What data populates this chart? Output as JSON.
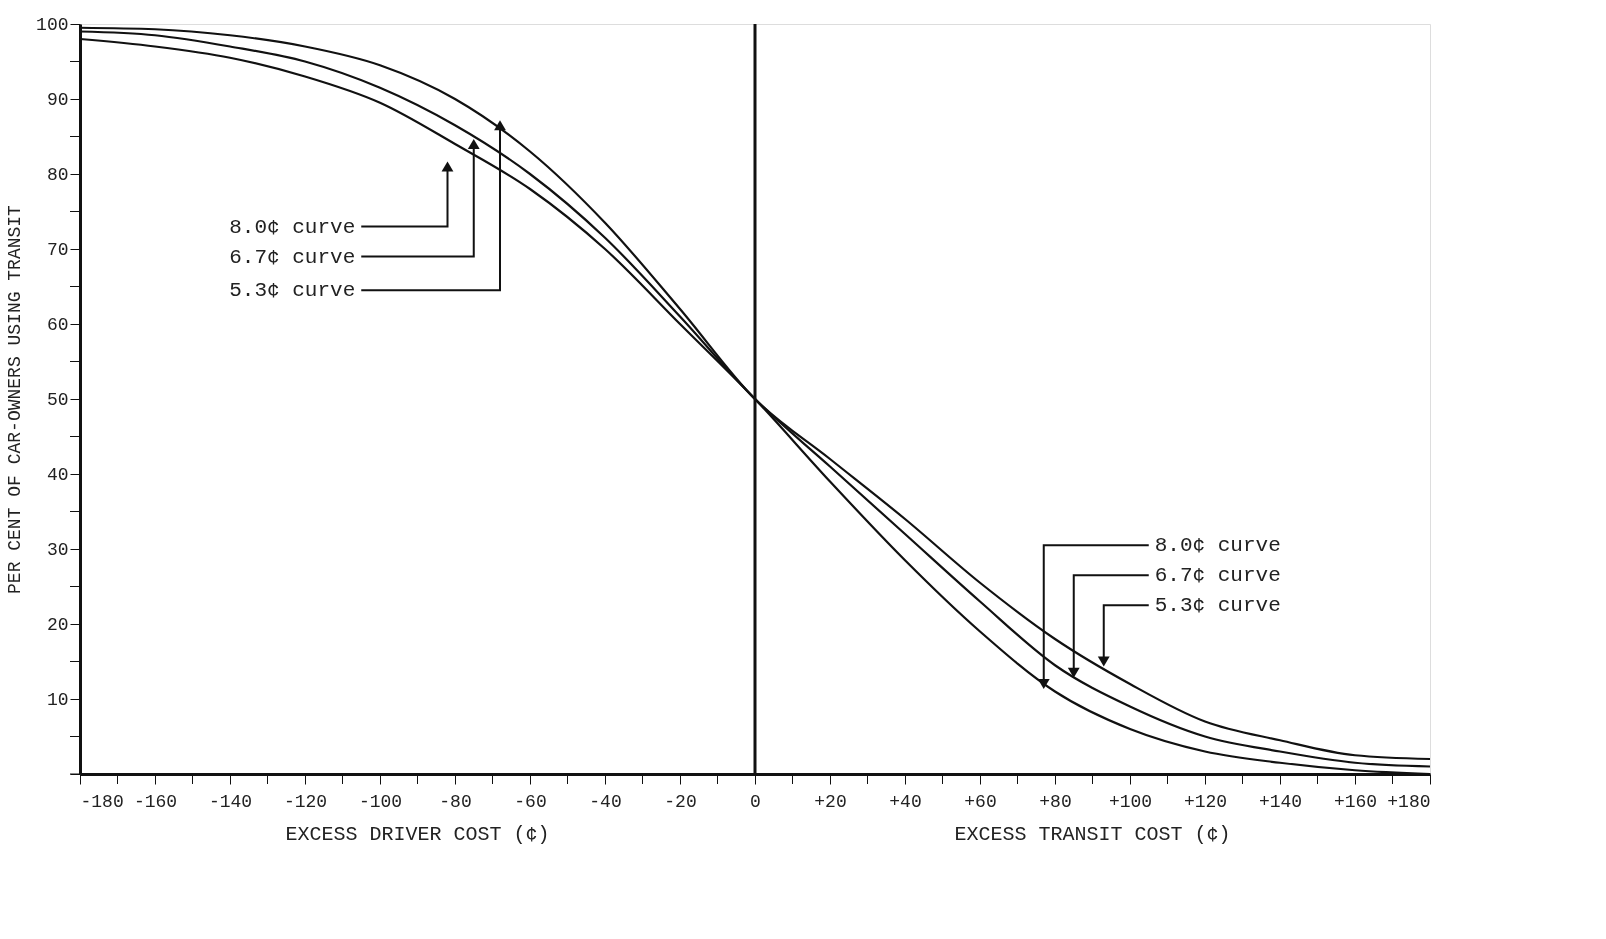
{
  "chart_data": {
    "type": "line",
    "ylabel": "PER CENT OF CAR-OWNERS USING TRANSIT",
    "x": [
      -180,
      -160,
      -140,
      -120,
      -100,
      -80,
      -60,
      -40,
      -20,
      0,
      20,
      40,
      60,
      80,
      100,
      120,
      140,
      160,
      180
    ],
    "series": [
      {
        "color": "#111111",
        "values": [
          98,
          97,
          95.5,
          93,
          89.5,
          84,
          78,
          70,
          60,
          50,
          39,
          28.5,
          19,
          11,
          6,
          3,
          1.5,
          0.5,
          0
        ]
      },
      {
        "color": "#111111",
        "values": [
          99,
          98.5,
          97,
          95,
          91.5,
          86.5,
          80,
          71.5,
          61,
          50,
          41,
          32,
          23,
          14.5,
          9,
          5,
          3,
          1.5,
          1
        ]
      },
      {
        "color": "#111111",
        "values": [
          99.5,
          99.3,
          98.5,
          97,
          94.5,
          90,
          83,
          73.5,
          62,
          50,
          42,
          34,
          25.5,
          18,
          12,
          7,
          4.5,
          2.5,
          2
        ]
      }
    ],
    "xlim": [
      -180,
      180
    ],
    "xticks": [
      -180,
      {
        "value": -170,
        "label": null
      },
      -160,
      {
        "value": -150,
        "label": null
      },
      -140,
      {
        "value": -130,
        "label": null
      },
      -120,
      {
        "value": -110,
        "label": null
      },
      -100,
      {
        "value": -90,
        "label": null
      },
      -80,
      {
        "value": -70,
        "label": null
      },
      -60,
      {
        "value": -50,
        "label": null
      },
      -40,
      {
        "value": -30,
        "label": null
      },
      -20,
      {
        "value": -10,
        "label": null
      },
      0,
      {
        "value": 10,
        "label": null
      },
      {
        "value": 20,
        "label": "+20"
      },
      {
        "value": 30,
        "label": null
      },
      {
        "value": 40,
        "label": "+40"
      },
      {
        "value": 50,
        "label": null
      },
      {
        "value": 60,
        "label": "+60"
      },
      {
        "value": 70,
        "label": null
      },
      {
        "value": 80,
        "label": "+80"
      },
      {
        "value": 90,
        "label": null
      },
      {
        "value": 100,
        "label": "+100"
      },
      {
        "value": 110,
        "label": null
      },
      {
        "value": 120,
        "label": "+120"
      },
      {
        "value": 130,
        "label": null
      },
      {
        "value": 140,
        "label": "+140"
      },
      {
        "value": 150,
        "label": null
      },
      {
        "value": 160,
        "label": "+160"
      },
      {
        "value": 170,
        "label": null
      },
      {
        "value": 180,
        "label": "+180"
      }
    ],
    "ylim": [
      0,
      100
    ],
    "yticks": [
      {
        "value": 0,
        "label": null
      },
      {
        "value": 5,
        "label": null
      },
      10,
      {
        "value": 15,
        "label": null
      },
      20,
      {
        "value": 25,
        "label": null
      },
      30,
      {
        "value": 35,
        "label": null
      },
      40,
      {
        "value": 45,
        "label": null
      },
      50,
      {
        "value": 55,
        "label": null
      },
      60,
      {
        "value": 65,
        "label": null
      },
      70,
      {
        "value": 75,
        "label": null
      },
      80,
      {
        "value": 85,
        "label": null
      },
      90,
      {
        "value": 95,
        "label": null
      },
      100
    ],
    "ref_lines": [
      {
        "axis": "x",
        "value": 0,
        "color": "#111111"
      }
    ],
    "annotations": [
      {
        "text": "8.0¢ curve",
        "x": -82,
        "y": 81
      },
      {
        "text": "6.7¢ curve",
        "x": -75,
        "y": 84
      },
      {
        "text": "5.3¢ curve",
        "x": -68,
        "y": 86.5
      },
      {
        "text": "8.0¢ curve",
        "x": 77,
        "y": 12
      },
      {
        "text": "6.7¢ curve",
        "x": 85,
        "y": 13.5
      },
      {
        "text": "5.3¢ curve",
        "x": 93,
        "y": 15
      },
      "EXCESS DRIVER COST (¢)",
      "EXCESS TRANSIT COST (¢)"
    ],
    "grid": false,
    "marker": "none",
    "line_style": "solid"
  }
}
